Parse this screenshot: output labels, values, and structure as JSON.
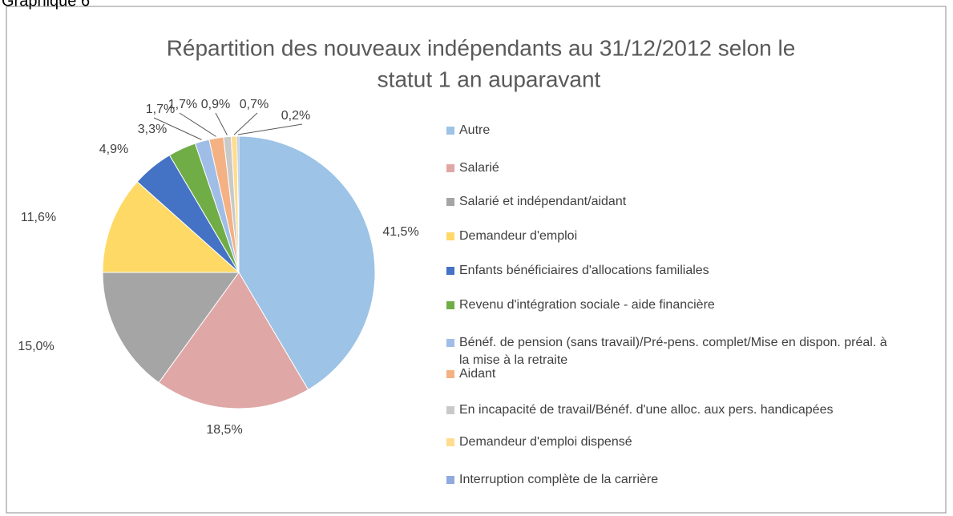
{
  "header": {
    "title": "Graphique 6"
  },
  "chart_data": {
    "type": "pie",
    "title": [
      "Répartition des nouveaux indépendants au 31/12/2012 selon le",
      "statut 1 an auparavant"
    ],
    "categories": [
      "Autre",
      "Salarié",
      "Salarié et indépendant/aidant",
      "Demandeur d'emploi",
      "Enfants bénéficiaires d'allocations familiales",
      "Revenu d'intégration sociale - aide financière",
      [
        "Bénéf. de pension (sans travail)/Pré-pens. complet/Mise en dispon. préal. à",
        "la mise à la retraite"
      ],
      "Aidant",
      "En incapacité de travail/Bénéf. d'une alloc. aux pers. handicapées",
      "Demandeur d'emploi dispensé",
      "Interruption complète de la carrière"
    ],
    "values": [
      41.5,
      18.5,
      15.0,
      11.6,
      4.9,
      3.3,
      1.7,
      1.7,
      0.9,
      0.7,
      0.2
    ],
    "value_labels": [
      "41,5%",
      "18,5%",
      "15,0%",
      "11,6%",
      "4,9%",
      "3,3%",
      "1,7%",
      "1,7%",
      "0,9%",
      "0,7%",
      "0,2%"
    ],
    "colors": [
      "#9dc3e6",
      "#dfa7a6",
      "#a5a5a5",
      "#ffd966",
      "#4472c4",
      "#70ad47",
      "#9fbde6",
      "#f4b183",
      "#c9c9c9",
      "#ffdc8f",
      "#8faadc"
    ],
    "legend": "right"
  }
}
